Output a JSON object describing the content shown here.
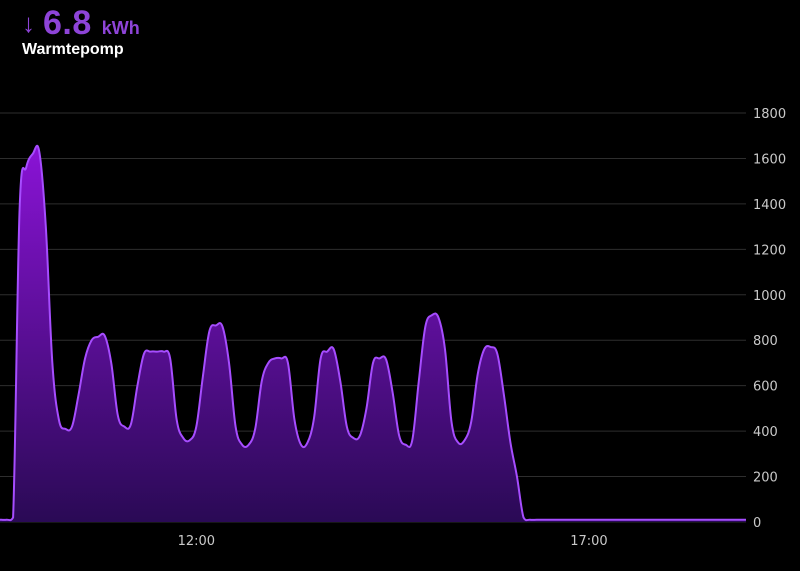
{
  "header": {
    "arrow_icon": "arrow-down-icon",
    "arrow_glyph": "↓",
    "value": "6.8",
    "unit": "kWh",
    "name": "Warmtepomp",
    "accent_color": "#8e44d8"
  },
  "chart_data": {
    "type": "area",
    "title": "",
    "xlabel": "",
    "ylabel": "",
    "ylim": [
      0,
      1800
    ],
    "y_ticks": [
      0,
      200,
      400,
      600,
      800,
      1000,
      1200,
      1400,
      1600,
      1800
    ],
    "x_ticks": [
      "12:00",
      "17:00"
    ],
    "grid": true,
    "colors": {
      "line": "#a64dff",
      "fill_top": "#8a13d6",
      "fill_bottom": "#2a0a55"
    },
    "series": [
      {
        "x": [
          "09:30",
          "09:35",
          "09:40",
          "09:45",
          "09:50",
          "09:55",
          "10:00",
          "10:05",
          "10:10",
          "10:15",
          "10:20",
          "10:25",
          "10:30",
          "10:35",
          "10:40",
          "10:45",
          "10:50",
          "10:55",
          "11:00",
          "11:05",
          "11:10",
          "11:15",
          "11:20",
          "11:25",
          "11:30",
          "11:35",
          "11:40",
          "11:45",
          "11:50",
          "11:55",
          "12:00",
          "12:05",
          "12:10",
          "12:15",
          "12:20",
          "12:25",
          "12:30",
          "12:35",
          "12:40",
          "12:45",
          "12:50",
          "12:55",
          "13:00",
          "13:05",
          "13:10",
          "13:15",
          "13:20",
          "13:25",
          "13:30",
          "13:35",
          "13:40",
          "13:45",
          "13:50",
          "13:55",
          "14:00",
          "14:05",
          "14:10",
          "14:15",
          "14:20",
          "14:25",
          "14:30",
          "14:35",
          "14:40",
          "14:45",
          "14:50",
          "14:55",
          "15:00",
          "15:05",
          "15:10",
          "15:15",
          "15:20",
          "15:25",
          "15:30",
          "15:35",
          "15:40",
          "15:45",
          "15:50",
          "15:55",
          "16:00",
          "16:05",
          "16:10",
          "16:15",
          "16:20",
          "16:25",
          "16:30",
          "16:35",
          "16:40",
          "16:45",
          "16:50",
          "16:55",
          "17:00",
          "17:05",
          "17:10",
          "17:15",
          "17:20",
          "17:25",
          "17:30",
          "17:35",
          "17:40",
          "17:45",
          "17:50",
          "17:55",
          "18:00",
          "18:05",
          "18:10",
          "18:15",
          "18:20",
          "18:25",
          "18:30",
          "18:35",
          "18:40",
          "18:45",
          "18:50",
          "18:55",
          "19:00"
        ],
        "y": [
          10,
          10,
          20,
          1380,
          1560,
          1620,
          1630,
          1300,
          700,
          450,
          410,
          420,
          560,
          720,
          800,
          815,
          820,
          700,
          470,
          420,
          430,
          600,
          740,
          750,
          750,
          750,
          720,
          450,
          370,
          360,
          420,
          640,
          840,
          865,
          860,
          700,
          420,
          340,
          340,
          410,
          620,
          700,
          720,
          720,
          700,
          450,
          340,
          350,
          460,
          720,
          750,
          760,
          620,
          420,
          370,
          380,
          500,
          700,
          720,
          715,
          570,
          380,
          340,
          360,
          620,
          860,
          910,
          900,
          760,
          440,
          350,
          360,
          440,
          650,
          760,
          770,
          740,
          560,
          350,
          200,
          20,
          10,
          10,
          10,
          10,
          10,
          10,
          10,
          10,
          10,
          10,
          10,
          10,
          10,
          10,
          10,
          10,
          10,
          10,
          10,
          10,
          10,
          10,
          10,
          10,
          10,
          10,
          10,
          10,
          10,
          10,
          10,
          10,
          10,
          10
        ]
      }
    ]
  }
}
